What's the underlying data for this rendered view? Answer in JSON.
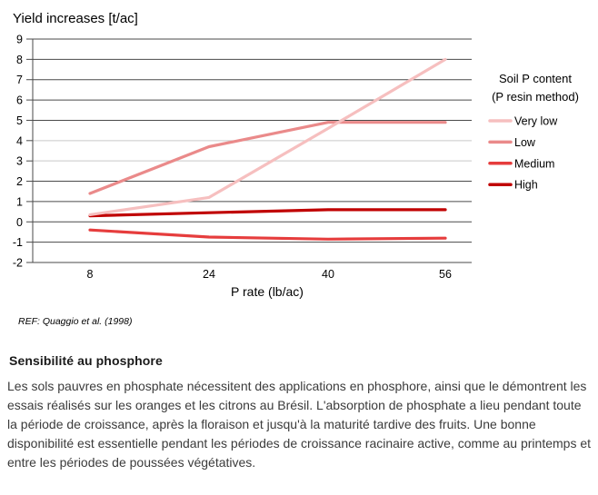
{
  "colors": {
    "grid_dark": "#4a4a4a",
    "grid_light": "#c9c9c9",
    "axis_line": "#4a4a4a",
    "axis_text": "#000000",
    "ref_text": "#333333",
    "heading_text": "#1a1a1a",
    "body_text": "#3b3b3b"
  },
  "chart_data": {
    "type": "line",
    "title": "Yield increases [t/ac]",
    "xlabel": "P rate (lb/ac)",
    "ylabel": "",
    "x": [
      8,
      24,
      40,
      56
    ],
    "xtick_labels": [
      "8",
      "24",
      "40",
      "56"
    ],
    "ylim": [
      -2,
      9
    ],
    "ytick_step": 1,
    "grid": true,
    "light_gridlines": [
      3,
      4
    ],
    "legend_position": "right",
    "legend_title": [
      "Soil P content",
      "(P resin method)"
    ],
    "series": [
      {
        "name": "Very low",
        "color": "#f6bfbf",
        "values": [
          0.35,
          1.2,
          4.6,
          8.0
        ]
      },
      {
        "name": "Low",
        "color": "#ea8a8a",
        "values": [
          1.4,
          3.7,
          4.9,
          4.9
        ]
      },
      {
        "name": "Medium",
        "color": "#e63d3d",
        "values": [
          -0.4,
          -0.75,
          -0.85,
          -0.8
        ]
      },
      {
        "name": "High",
        "color": "#c00000",
        "values": [
          0.3,
          0.45,
          0.6,
          0.6
        ]
      }
    ],
    "reference": "REF: Quaggio et al. (1998)"
  },
  "article": {
    "heading": "Sensibilité au phosphore",
    "body": "Les sols pauvres en phosphate nécessitent des applications en phosphore, ainsi que le démontrent les essais réalisés sur les oranges et les citrons au Brésil. L'absorption de phosphate a lieu pendant toute la période de croissance, après la floraison et jusqu'à la maturité tardive des fruits. Une bonne disponibilité est essentielle pendant les périodes de croissance racinaire active, comme au printemps et entre les périodes de poussées végétatives."
  }
}
